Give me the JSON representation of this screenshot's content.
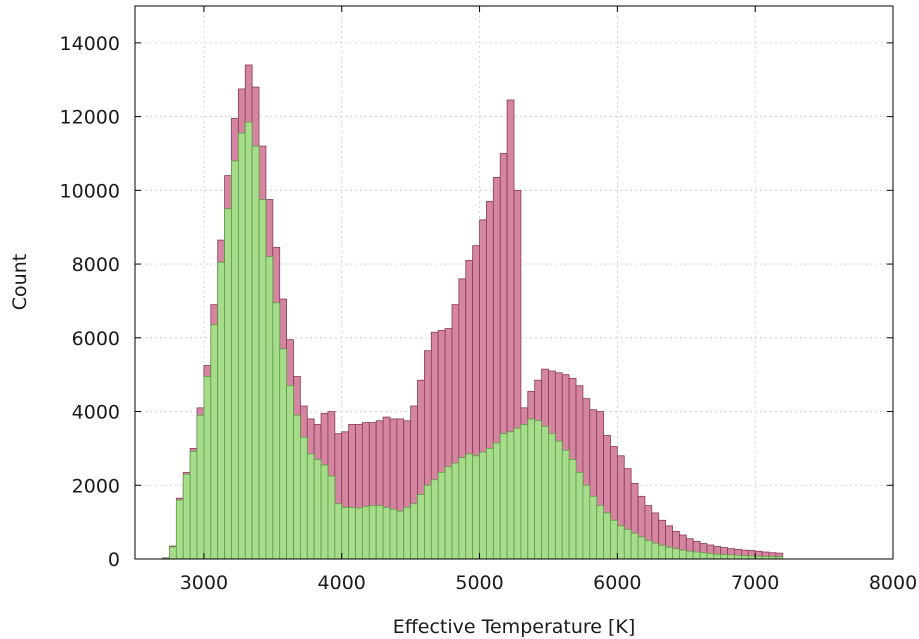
{
  "chart_data": {
    "type": "bar",
    "xlabel": "Effective Temperature [K]",
    "ylabel": "Count",
    "xlim": [
      2500,
      8000
    ],
    "ylim": [
      0,
      15000
    ],
    "xticks": [
      3000,
      4000,
      5000,
      6000,
      7000,
      8000
    ],
    "yticks": [
      0,
      2000,
      4000,
      6000,
      8000,
      10000,
      12000,
      14000
    ],
    "grid": true,
    "bin_width": 50,
    "bin_start": 2700,
    "colors": {
      "series_1": "#d4859f",
      "series_1_edge": "#8b3a5c",
      "series_2": "#a6dc8a",
      "series_2_edge": "#5d9e47"
    },
    "series": [
      {
        "values": [
          30,
          350,
          1650,
          2350,
          3000,
          4100,
          5250,
          6900,
          8650,
          10400,
          11950,
          12750,
          13400,
          12800,
          11200,
          9750,
          8450,
          7050,
          5950,
          4950,
          4150,
          3800,
          3650,
          3950,
          4000,
          3400,
          3450,
          3650,
          3650,
          3700,
          3700,
          3750,
          3850,
          3800,
          3800,
          3750,
          4150,
          4850,
          5650,
          6150,
          6200,
          6250,
          6900,
          7600,
          8100,
          8500,
          9200,
          9700,
          10350,
          11000,
          12450,
          10000,
          4100,
          4550,
          4850,
          5150,
          5100,
          5050,
          5000,
          4900,
          4700,
          4350,
          4050,
          4000,
          3350,
          3050,
          2800,
          2450,
          2050,
          1700,
          1450,
          1250,
          1050,
          900,
          750,
          650,
          550,
          480,
          420,
          380,
          340,
          310,
          280,
          260,
          240,
          230,
          210,
          190,
          170,
          160
        ]
      },
      {
        "values": [
          20,
          330,
          1600,
          2300,
          2920,
          3900,
          4950,
          6350,
          8050,
          9500,
          10800,
          11550,
          11850,
          11200,
          9750,
          8200,
          6950,
          5700,
          4700,
          3900,
          3300,
          2850,
          2700,
          2550,
          2250,
          1500,
          1400,
          1400,
          1380,
          1420,
          1450,
          1450,
          1400,
          1350,
          1300,
          1400,
          1500,
          1750,
          2000,
          2150,
          2350,
          2500,
          2600,
          2750,
          2850,
          2800,
          2900,
          3000,
          3150,
          3400,
          3450,
          3550,
          3650,
          3800,
          3750,
          3600,
          3400,
          3200,
          2950,
          2700,
          2350,
          2000,
          1700,
          1450,
          1250,
          1050,
          900,
          800,
          700,
          600,
          500,
          430,
          370,
          320,
          280,
          240,
          210,
          190,
          170,
          150,
          130,
          120,
          110,
          100,
          90,
          80,
          75,
          70,
          65,
          60
        ]
      }
    ]
  }
}
